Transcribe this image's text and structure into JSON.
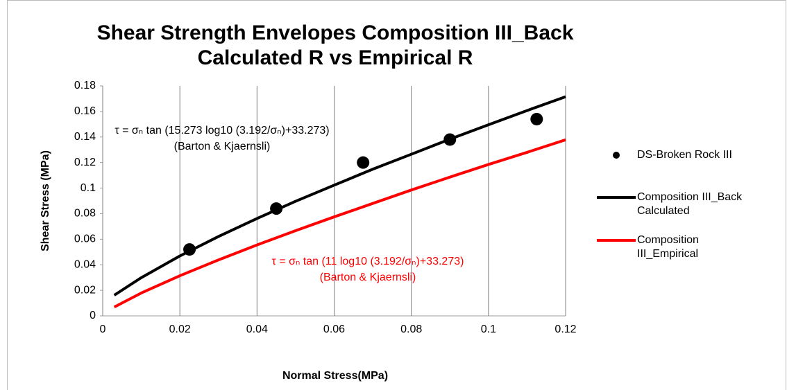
{
  "chart_data": {
    "type": "scatter_line",
    "title": "Shear Strength Envelopes Composition III_Back Calculated R vs Empirical R",
    "x_label": "Normal Stress(MPa)",
    "y_label": "Shear Stress (MPa)",
    "xlim": [
      0,
      0.12
    ],
    "xticks": [
      0,
      0.02,
      0.04,
      0.06,
      0.08,
      0.1,
      0.12
    ],
    "ylim": [
      0,
      0.18
    ],
    "yticks": [
      0,
      0.02,
      0.04,
      0.06,
      0.08,
      0.1,
      0.12,
      0.14,
      0.16,
      0.18
    ],
    "grid": "x",
    "legend": "right",
    "series": [
      {
        "name": "DS-Broken Rock III",
        "kind": "scatter",
        "color": "#000000",
        "x": [
          0.0225,
          0.045,
          0.0675,
          0.09,
          0.1125
        ],
        "values": [
          0.052,
          0.084,
          0.12,
          0.138,
          0.154
        ]
      },
      {
        "name": "Composition III_Back Calculated",
        "kind": "line",
        "color": "#000000",
        "x": [
          0.003,
          0.01,
          0.02,
          0.03,
          0.04,
          0.05,
          0.06,
          0.07,
          0.08,
          0.09,
          0.1,
          0.11,
          0.12
        ],
        "values": [
          0.0162,
          0.0299,
          0.0469,
          0.0621,
          0.0762,
          0.0897,
          0.1023,
          0.1148,
          0.1265,
          0.1383,
          0.1496,
          0.1607,
          0.1715
        ]
      },
      {
        "name": "Composition III_Empirical",
        "kind": "line",
        "color": "#ff0000",
        "x": [
          0.003,
          0.01,
          0.02,
          0.03,
          0.04,
          0.05,
          0.06,
          0.07,
          0.08,
          0.09,
          0.1,
          0.11,
          0.12
        ],
        "values": [
          0.0069,
          0.0179,
          0.0314,
          0.0438,
          0.0555,
          0.0667,
          0.0775,
          0.088,
          0.0985,
          0.1086,
          0.1185,
          0.128,
          0.1378
        ]
      }
    ],
    "annotations": [
      {
        "lines": [
          "τ = σₙ tan (15.273 log10 (3.192/σₙ)+33.273)",
          "(Barton & Kjaernsli)"
        ],
        "color": "#000000"
      },
      {
        "lines": [
          "τ = σₙ tan (11 log10 (3.192/σₙ)+33.273)",
          "(Barton & Kjaernsli)"
        ],
        "color": "#ff0000"
      }
    ]
  }
}
